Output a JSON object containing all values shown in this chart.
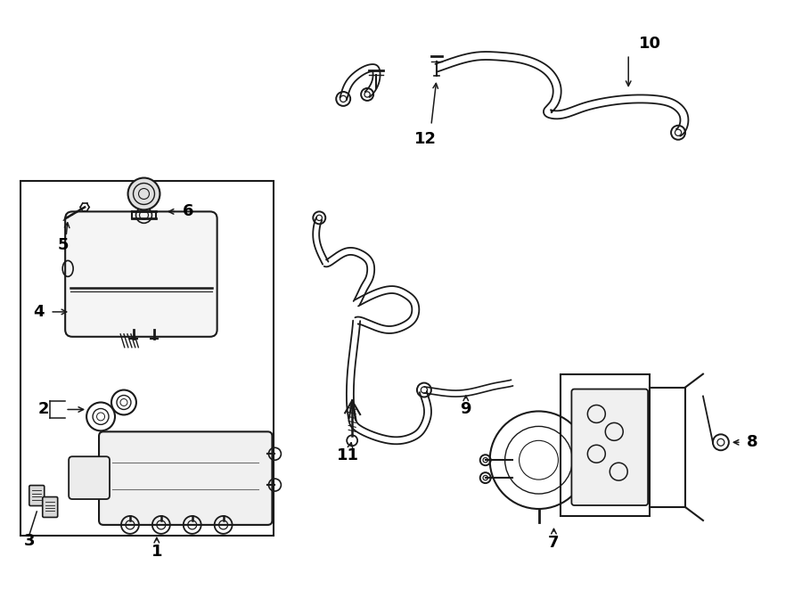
{
  "bg_color": "#ffffff",
  "line_color": "#1a1a1a",
  "text_color": "#000000",
  "figure_width": 9.0,
  "figure_height": 6.62,
  "dpi": 100
}
